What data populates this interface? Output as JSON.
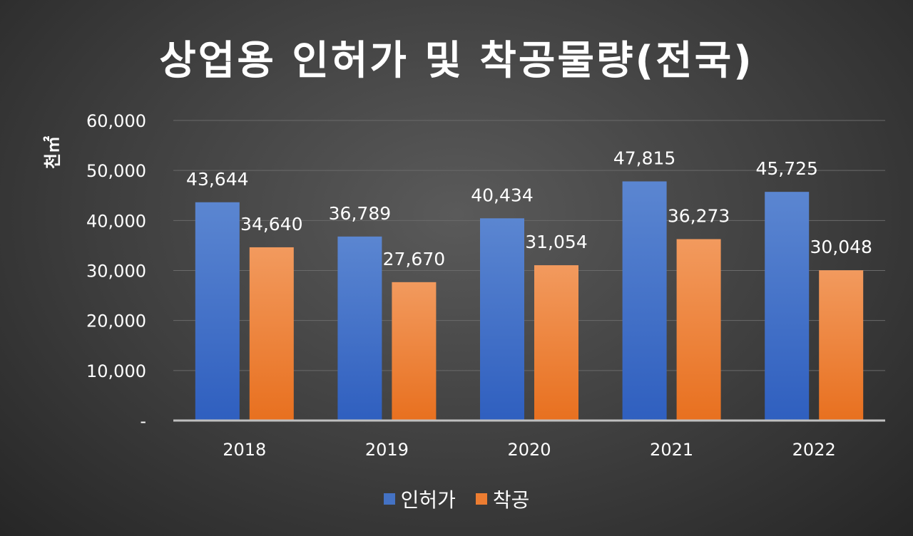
{
  "chart_data": {
    "type": "bar",
    "title": "상업용 인허가 및 착공물량(전국)",
    "ylabel": "천㎡",
    "categories": [
      "2018",
      "2019",
      "2020",
      "2021",
      "2022"
    ],
    "series": [
      {
        "name": "인허가",
        "color": "#4472C4",
        "values": [
          43644,
          36789,
          40434,
          47815,
          45725
        ],
        "labels": [
          "43,644",
          "36,789",
          "40,434",
          "47,815",
          "45,725"
        ]
      },
      {
        "name": "착공",
        "color": "#ED7D31",
        "values": [
          34640,
          27670,
          31054,
          36273,
          30048
        ],
        "labels": [
          "34,640",
          "27,670",
          "31,054",
          "36,273",
          "30,048"
        ]
      }
    ],
    "ylim": [
      0,
      60000
    ],
    "yticks": [
      0,
      10000,
      20000,
      30000,
      40000,
      50000,
      60000
    ],
    "ytick_labels": [
      "-",
      "10,000",
      "20,000",
      "30,000",
      "40,000",
      "50,000",
      "60,000"
    ],
    "grid": true,
    "legend": "bottom"
  }
}
